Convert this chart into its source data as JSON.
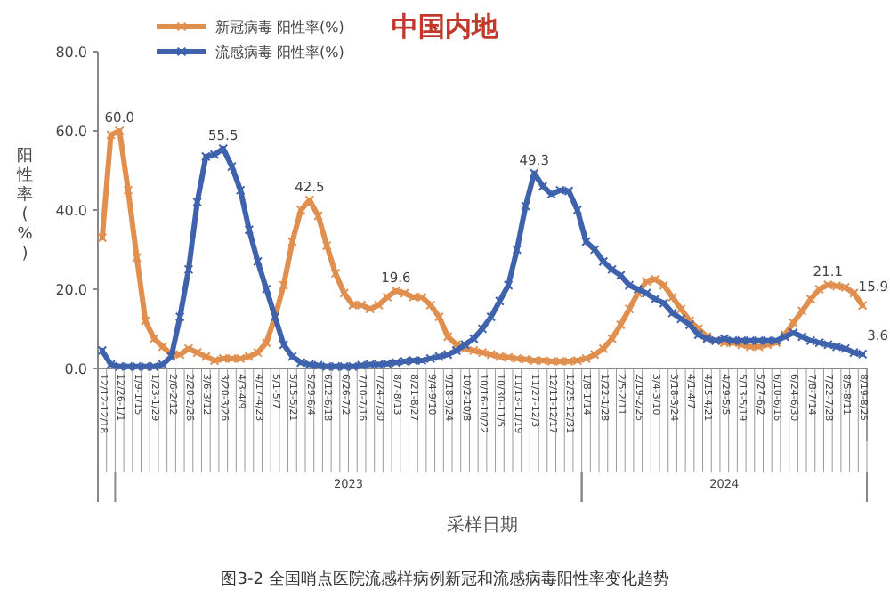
{
  "chart_data": {
    "type": "line",
    "title": "中国内地",
    "xlabel": "采样日期",
    "ylabel": "阳性率(%)",
    "categories": [
      "12/12-12/18",
      null,
      "12/26-1/1",
      null,
      "1/9-1/15",
      null,
      "1/23-1/29",
      null,
      "2/6-2/12",
      null,
      "2/20-2/26",
      null,
      "3/6-3/12",
      null,
      "3/20-3/26",
      null,
      "4/3-4/9",
      null,
      "4/17-4/23",
      null,
      "5/1-5/7",
      null,
      "5/15-5/21",
      null,
      "5/29-6/4",
      null,
      "6/12-6/18",
      null,
      "6/26-7/2",
      null,
      "7/10-7/16",
      null,
      "7/24-7/30",
      null,
      "8/7-8/13",
      null,
      "8/21-8/27",
      null,
      "9/4-9/10",
      null,
      "9/18-9/24",
      null,
      "10/2-10/8",
      null,
      "10/16-10/22",
      null,
      "10/30-11/5",
      null,
      "11/13-11/19",
      null,
      "11/27-12/3",
      null,
      "12/11-12/17",
      null,
      "12/25-12/31",
      null,
      "1/8-1/14",
      null,
      "1/22-1/28",
      null,
      "2/5-2/11",
      null,
      "2/19-2/25",
      null,
      "3/4-3/10",
      null,
      "3/18-3/24",
      null,
      "4/1-4/7",
      null,
      "4/15-4/21",
      null,
      "4/29-5/5",
      null,
      "5/13-5/19",
      null,
      "5/27-6/2",
      null,
      "6/10-6/16",
      null,
      "6/24-6/30",
      null,
      "7/8-7/14",
      null,
      "7/22-7/28",
      null,
      "8/5-8/11",
      null,
      "8/19-8/25"
    ],
    "series": [
      {
        "name": "新冠病毒 阳性率(%)",
        "color": "#e08f4f",
        "values": [
          33,
          59,
          60,
          45,
          28,
          12,
          7.5,
          5.5,
          3.5,
          3.5,
          5,
          4,
          3,
          2,
          2.5,
          2.5,
          2.5,
          3,
          4,
          6.5,
          13,
          21,
          32,
          40,
          42.5,
          38.5,
          31,
          24,
          19,
          16,
          16,
          15,
          16,
          18,
          19.6,
          19,
          18,
          18,
          16,
          13,
          8,
          6,
          5,
          4.5,
          4,
          3.5,
          3,
          2.8,
          2.5,
          2.3,
          2,
          2,
          1.8,
          1.8,
          1.8,
          2,
          2.5,
          3.5,
          5,
          7.5,
          11,
          15,
          19,
          22,
          22.5,
          21,
          18,
          15,
          12,
          10,
          8,
          7,
          6.5,
          6.5,
          6,
          5.5,
          5.5,
          6,
          6.5,
          8.5,
          11.5,
          14.5,
          17.5,
          20,
          21.1,
          20.8,
          20.5,
          19,
          15.9
        ]
      },
      {
        "name": "流感病毒 阳性率(%)",
        "color": "#3f62ad",
        "values": [
          4.5,
          1,
          0.5,
          0.5,
          0.5,
          0.5,
          0.5,
          1,
          3,
          13,
          25,
          42,
          53.5,
          54,
          55.5,
          51,
          45,
          35,
          27,
          20,
          13,
          6,
          3,
          1.5,
          1,
          0.8,
          0.5,
          0.5,
          0.5,
          0.5,
          0.8,
          1,
          1,
          1.2,
          1.5,
          1.8,
          2,
          2,
          2.5,
          3,
          3.5,
          4.5,
          6,
          7.5,
          10,
          13,
          17,
          21,
          30,
          41,
          49.3,
          46,
          44,
          45,
          44.8,
          40,
          32,
          30,
          27,
          25,
          23.5,
          21,
          20,
          19,
          17.5,
          16.5,
          14,
          12.5,
          11,
          8.5,
          7.5,
          7,
          7.5,
          7,
          7,
          7,
          7,
          7,
          7,
          8,
          9,
          8,
          7,
          6.5,
          6,
          5.5,
          5,
          4,
          3.6
        ]
      }
    ],
    "ylim": [
      0,
      80
    ],
    "yticks": [
      {
        "value": 0,
        "label": "0.0"
      },
      {
        "value": 20,
        "label": "20.0"
      },
      {
        "value": 40,
        "label": "40.0"
      },
      {
        "value": 60,
        "label": "60.0"
      },
      {
        "value": 80,
        "label": "80.0"
      }
    ],
    "legend": "top left",
    "marker": "cross",
    "line_style": "solid",
    "annotations": [
      {
        "text": "60.0",
        "x": "12/26-1/1",
        "y": 60
      },
      {
        "text": "55.5",
        "x": "3/20-3/26",
        "y": 55.5
      },
      {
        "text": "42.5",
        "x": "5/29-6/4",
        "y": 42.5
      },
      {
        "text": "19.6",
        "x": "8/7-8/13",
        "y": 19.6
      },
      {
        "text": "49.3",
        "x": "11/27-12/3",
        "y": 49.3
      },
      {
        "text": "21.1",
        "x": "7/22-7/28",
        "y": 21.1
      },
      {
        "text": "15.9",
        "x": "8/19-8/25",
        "y": 15.9
      },
      {
        "text": "3.6",
        "x": "8/19-8/25",
        "y": 3.6
      },
      "2023",
      "2024",
      "图3-2 全国哨点医院流感样病例新冠和流感病毒阳性率变化趋势"
    ]
  }
}
